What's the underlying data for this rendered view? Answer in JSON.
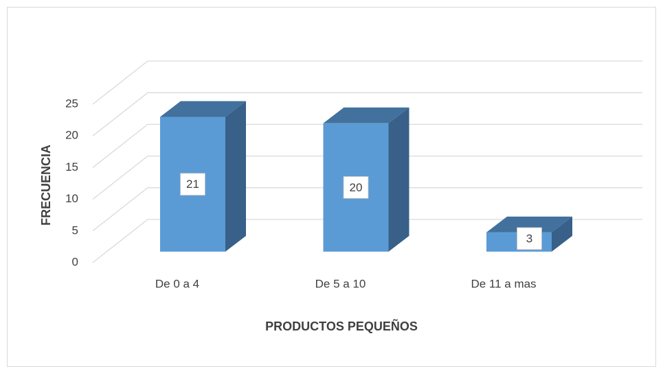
{
  "chart_data": {
    "type": "bar3d",
    "categories": [
      "De 0 a 4",
      "De 5 a 10",
      "De 11 a mas"
    ],
    "values": [
      21,
      20,
      3
    ],
    "color": "#5b9bd5",
    "xlabel": "PRODUCTOS PEQUEÑOS",
    "ylabel": "FRECUENCIA",
    "ylim": [
      0,
      25
    ],
    "yticks": [
      0,
      5,
      10,
      15,
      20,
      25
    ],
    "grid": true
  }
}
